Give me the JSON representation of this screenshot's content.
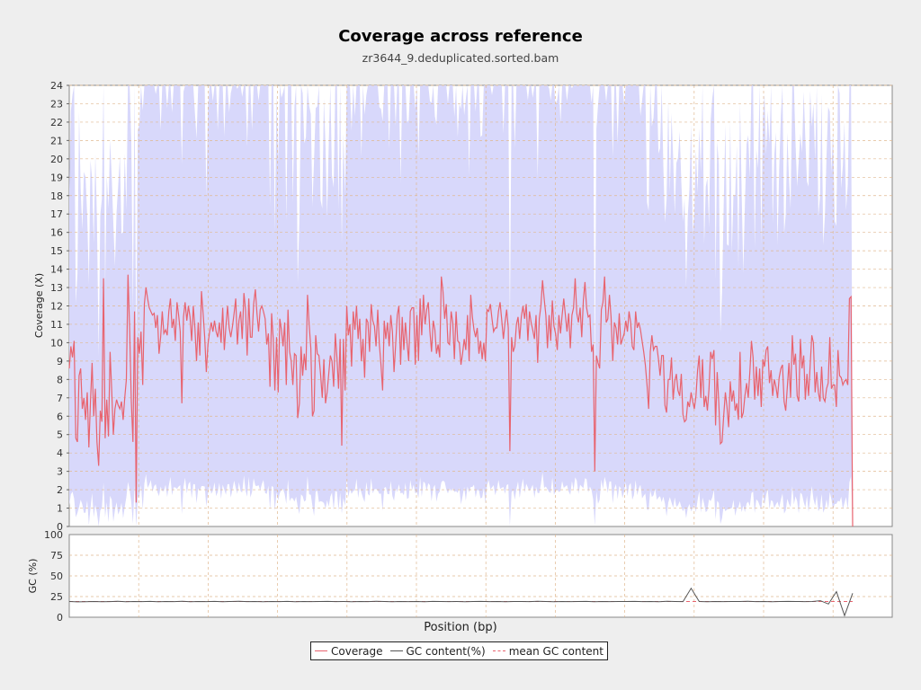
{
  "title": "Coverage across reference",
  "subtitle": "zr3644_9.deduplicated.sorted.bam",
  "colors": {
    "coverage_line": "#e8636e",
    "coverage_band": "#d8d8fb",
    "gc_line": "#555555",
    "mean_gc": "#e8636e",
    "grid": "#e0b890",
    "background": "#eeeeee"
  },
  "chart_data": [
    {
      "type": "line",
      "ylabel": "Coverage (X)",
      "ylim": [
        0,
        24
      ],
      "yticks": [
        "0",
        "1",
        "2",
        "3",
        "4",
        "5",
        "6",
        "7",
        "8",
        "9",
        "10",
        "11",
        "12",
        "13",
        "14",
        "15",
        "16",
        "17",
        "18",
        "19",
        "20",
        "21",
        "22",
        "23",
        "24"
      ],
      "grid": true,
      "series": [
        {
          "name": "Coverage",
          "values": [
            8.6,
            9.8,
            9.2,
            10.1,
            4.8,
            4.6,
            8.2,
            8.6,
            6.4,
            7.0,
            5.8,
            7.3,
            4.3,
            6.8,
            8.9,
            6.0,
            7.5,
            4.6,
            3.3,
            6.3,
            5.7,
            13.5,
            4.8,
            6.9,
            4.9,
            9.5,
            7.4,
            5.0,
            6.4,
            6.9,
            6.6,
            6.4,
            6.8,
            5.8,
            7.0,
            8.0,
            13.7,
            10.8,
            6.8,
            4.6,
            11.7,
            1.3,
            10.3,
            9.4,
            10.6,
            7.7,
            12.1,
            13.0,
            12.4,
            11.9,
            11.7,
            11.5,
            11.6,
            10.8,
            11.5,
            9.4,
            10.3,
            11.7,
            10.5,
            10.7,
            10.4,
            11.7,
            12.4,
            10.8,
            11.3,
            10.1,
            12.2,
            11.5,
            10.6,
            6.7,
            11.4,
            12.2,
            11.2,
            12.0,
            11.4,
            10.1,
            12.0,
            10.8,
            9.0,
            11.1,
            9.3,
            12.8,
            11.6,
            10.3,
            8.4,
            9.9,
            10.6,
            11.1,
            10.6,
            11.2,
            10.6,
            10.3,
            11.1,
            10.0,
            11.9,
            9.6,
            10.9,
            12.0,
            10.8,
            10.3,
            10.9,
            11.6,
            12.4,
            9.9,
            11.2,
            11.7,
            10.2,
            12.7,
            11.8,
            9.3,
            12.4,
            10.3,
            10.3,
            12.1,
            12.9,
            11.6,
            10.6,
            11.8,
            12.0,
            11.7,
            11.3,
            9.9,
            10.5,
            7.6,
            11.6,
            10.2,
            7.4,
            10.3,
            7.3,
            11.3,
            10.7,
            9.8,
            11.1,
            7.7,
            11.8,
            9.5,
            9.0,
            7.7,
            9.4,
            9.3,
            5.9,
            6.7,
            9.8,
            8.2,
            9.4,
            8.5,
            12.6,
            11.0,
            9.7,
            6.0,
            6.3,
            10.4,
            9.4,
            9.3,
            8.3,
            7.0,
            9.1,
            6.7,
            7.3,
            8.3,
            9.3,
            9.0,
            7.6,
            10.5,
            9.2,
            7.5,
            10.2,
            4.4,
            10.2,
            7.4,
            12.0,
            10.4,
            11.0,
            8.7,
            11.7,
            10.7,
            12.0,
            10.2,
            11.3,
            9.0,
            10.2,
            8.1,
            11.3,
            11.1,
            9.5,
            12.1,
            11.2,
            10.9,
            9.8,
            11.8,
            9.9,
            8.8,
            7.4,
            11.2,
            10.2,
            11.1,
            9.8,
            11.5,
            10.6,
            8.4,
            9.9,
            11.5,
            12.0,
            8.8,
            11.4,
            9.6,
            11.1,
            10.0,
            9.0,
            11.7,
            11.9,
            11.9,
            8.8,
            11.5,
            9.0,
            12.4,
            10.4,
            12.6,
            11.0,
            11.8,
            12.2,
            10.6,
            9.5,
            11.2,
            10.7,
            9.4,
            9.9,
            9.2,
            13.6,
            12.8,
            11.3,
            12.1,
            10.0,
            9.9,
            11.7,
            11.1,
            9.1,
            11.7,
            10.1,
            10.0,
            8.8,
            9.4,
            10.2,
            9.6,
            11.5,
            9.0,
            12.6,
            11.4,
            10.7,
            10.3,
            10.8,
            9.4,
            10.1,
            9.1,
            10.0,
            9.0,
            11.8,
            11.7,
            12.1,
            11.3,
            10.6,
            10.8,
            10.8,
            11.7,
            12.2,
            11.2,
            10.2,
            11.1,
            11.8,
            10.8,
            4.1,
            10.3,
            9.5,
            9.8,
            11.0,
            11.4,
            10.2,
            11.4,
            12.0,
            11.3,
            12.1,
            10.1,
            11.7,
            11.1,
            10.7,
            10.2,
            11.5,
            8.9,
            11.3,
            12.0,
            13.4,
            12.4,
            11.5,
            9.7,
            11.5,
            10.1,
            12.3,
            10.9,
            10.5,
            9.6,
            11.5,
            10.5,
            11.5,
            12.4,
            11.5,
            10.6,
            11.6,
            9.7,
            11.5,
            11.9,
            13.5,
            11.6,
            11.1,
            11.9,
            10.3,
            12.3,
            13.3,
            11.9,
            11.4,
            11.5,
            9.5,
            9.9,
            3.0,
            9.3,
            8.9,
            8.6,
            11.8,
            12.2,
            13.6,
            11.1,
            11.3,
            12.6,
            11.4,
            9.0,
            11.1,
            10.8,
            9.9,
            11.6,
            9.9,
            10.2,
            10.5,
            11.2,
            10.6,
            11.7,
            11.1,
            9.8,
            9.6,
            11.7,
            10.8,
            11.1,
            10.7,
            10.1,
            9.5,
            8.8,
            7.7,
            6.4,
            9.5,
            10.4,
            9.6,
            9.8,
            9.8,
            9.1,
            8.2,
            9.3,
            9.3,
            6.6,
            6.2,
            8.0,
            8.0,
            9.2,
            6.9,
            7.9,
            8.3,
            7.4,
            7.1,
            8.3,
            6.1,
            5.7,
            5.8,
            6.8,
            6.5,
            7.3,
            6.8,
            6.4,
            7.1,
            8.5,
            9.3,
            7.0,
            9.1,
            6.5,
            7.1,
            6.3,
            7.5,
            9.5,
            9.1,
            9.6,
            5.5,
            8.4,
            6.7,
            4.5,
            4.6,
            6.0,
            7.3,
            6.5,
            5.4,
            7.9,
            6.8,
            7.4,
            6.3,
            6.7,
            5.8,
            9.5,
            5.9,
            6.2,
            7.1,
            7.8,
            7.0,
            8.4,
            10.1,
            9.2,
            6.9,
            8.7,
            7.1,
            8.6,
            6.5,
            9.1,
            8.7,
            9.6,
            9.8,
            7.8,
            8.5,
            7.1,
            8.0,
            7.6,
            7.0,
            8.1,
            8.6,
            8.8,
            6.8,
            6.3,
            7.6,
            8.9,
            7.0,
            10.4,
            8.8,
            9.4,
            7.1,
            6.8,
            10.2,
            8.6,
            9.3,
            6.9,
            8.3,
            7.1,
            8.8,
            10.4,
            10.0,
            7.3,
            8.4,
            7.3,
            6.8,
            8.7,
            7.0,
            6.8,
            7.5,
            7.8,
            10.3,
            7.5,
            7.7,
            7.7,
            6.5,
            9.6,
            8.2,
            8.1,
            7.7,
            7.9,
            8.0,
            7.7,
            12.4,
            12.5,
            0.0
          ]
        }
      ]
    },
    {
      "type": "line",
      "xlabel": "Position (bp)",
      "ylabel": "GC (%)",
      "ylim": [
        0,
        100
      ],
      "yticks": [
        "0",
        "25",
        "50",
        "75",
        "100"
      ],
      "grid": true,
      "series": [
        {
          "name": "GC content(%)",
          "values": [
            19,
            18.6,
            18.8,
            19,
            18.7,
            18.9,
            19.2,
            18.8,
            19,
            18.9,
            19.1,
            18.8,
            19,
            18.9,
            19.2,
            18.7,
            19,
            18.9,
            19.1,
            18.8,
            19,
            19.2,
            18.9,
            19,
            18.8,
            19,
            18.9,
            19.1,
            18.8,
            19,
            18.9,
            19,
            19.1,
            18.9,
            19,
            18.8,
            19,
            18.9,
            19.2,
            19,
            18.8,
            19,
            18.9,
            19,
            18.8,
            19.1,
            19,
            18.9,
            19,
            18.8,
            19,
            19.1,
            18.9,
            19,
            18.8,
            19,
            19,
            18.9,
            19.2,
            19,
            18.8,
            19,
            18.9,
            19,
            19.1,
            18.8,
            19,
            18.9,
            19,
            19,
            19.1,
            18.9,
            19,
            18.8,
            19.2,
            19,
            18.9,
            35,
            19,
            18.8,
            19,
            18.9,
            19,
            19,
            19.2,
            18.9,
            19,
            18.8,
            19,
            19.1,
            19,
            18.9,
            19,
            20,
            16,
            31,
            2,
            29
          ]
        },
        {
          "name": "mean GC content",
          "values": [
            19
          ]
        }
      ]
    }
  ],
  "legend": {
    "coverage": "Coverage",
    "gc": "GC content(%)",
    "mean_gc": "mean GC content"
  }
}
